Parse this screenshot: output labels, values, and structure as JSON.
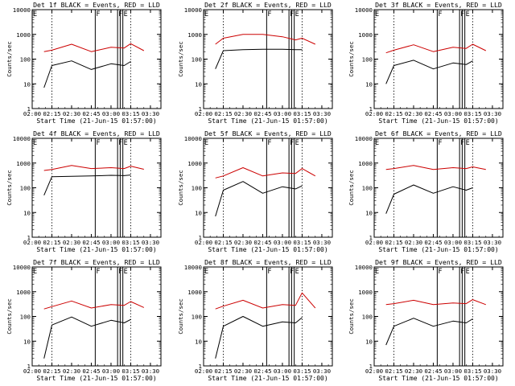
{
  "figure": {
    "x_axis_label": "Start Time (21-Jun-15 01:57:00)",
    "y_axis_label": "Counts/sec",
    "x_tick_labels": [
      "02:00",
      "02:15",
      "02:30",
      "02:45",
      "03:00",
      "03:15",
      "03:30"
    ],
    "y_tick_labels": [
      "1",
      "10",
      "100",
      "1000",
      "10000"
    ],
    "colors": {
      "events": "#000000",
      "lld": "#cc0000",
      "frame": "#000000"
    }
  },
  "chart_data": [
    {
      "type": "line",
      "title": "Det 1f BLACK = Events, RED = LLD",
      "xlim": [
        "02:00",
        "03:38"
      ],
      "ylim": [
        1,
        10000
      ],
      "y_scale": "log",
      "x": [
        "02:09",
        "02:15",
        "02:30",
        "02:45",
        "03:00",
        "03:10",
        "03:15",
        "03:25"
      ],
      "series": [
        {
          "name": "Events",
          "values": [
            7,
            55,
            85,
            38,
            65,
            55,
            80,
            null
          ]
        },
        {
          "name": "LLD",
          "values": [
            200,
            230,
            400,
            200,
            300,
            280,
            420,
            220
          ]
        }
      ],
      "annotation_letters": [
        "E",
        "F",
        "F",
        "E"
      ],
      "dotted_vlines": [
        "02:15",
        "03:15"
      ],
      "solid_vlines": [
        "02:48",
        "03:05",
        "03:07",
        "03:09"
      ]
    },
    {
      "type": "line",
      "title": "Det 2f BLACK = Events, RED = LLD",
      "xlim": [
        "02:00",
        "03:38"
      ],
      "ylim": [
        1,
        10000
      ],
      "y_scale": "log",
      "x": [
        "02:09",
        "02:15",
        "02:30",
        "02:45",
        "03:00",
        "03:10",
        "03:15",
        "03:25"
      ],
      "series": [
        {
          "name": "Events",
          "values": [
            40,
            220,
            240,
            250,
            250,
            240,
            240,
            null
          ]
        },
        {
          "name": "LLD",
          "values": [
            400,
            700,
            1000,
            1000,
            800,
            600,
            700,
            400
          ]
        }
      ],
      "annotation_letters": [
        "E",
        "F",
        "F",
        "E"
      ],
      "dotted_vlines": [
        "02:15",
        "03:15"
      ],
      "solid_vlines": [
        "02:48",
        "03:05",
        "03:07",
        "03:09"
      ]
    },
    {
      "type": "line",
      "title": "Det 3f BLACK = Events, RED = LLD",
      "xlim": [
        "02:00",
        "03:38"
      ],
      "ylim": [
        1,
        10000
      ],
      "y_scale": "log",
      "x": [
        "02:09",
        "02:15",
        "02:30",
        "02:45",
        "03:00",
        "03:10",
        "03:15",
        "03:25"
      ],
      "series": [
        {
          "name": "Events",
          "values": [
            10,
            55,
            90,
            40,
            70,
            60,
            85,
            null
          ]
        },
        {
          "name": "LLD",
          "values": [
            180,
            230,
            380,
            200,
            300,
            270,
            400,
            220
          ]
        }
      ],
      "annotation_letters": [
        "E",
        "F",
        "F",
        "E"
      ],
      "dotted_vlines": [
        "02:15",
        "03:15"
      ],
      "solid_vlines": [
        "02:48",
        "03:05",
        "03:07",
        "03:09"
      ]
    },
    {
      "type": "line",
      "title": "Det 4f BLACK = Events, RED = LLD",
      "xlim": [
        "02:00",
        "03:38"
      ],
      "ylim": [
        1,
        10000
      ],
      "y_scale": "log",
      "x": [
        "02:09",
        "02:15",
        "02:30",
        "02:45",
        "03:00",
        "03:10",
        "03:15",
        "03:25"
      ],
      "series": [
        {
          "name": "Events",
          "values": [
            50,
            280,
            290,
            300,
            320,
            310,
            330,
            null
          ]
        },
        {
          "name": "LLD",
          "values": [
            500,
            550,
            800,
            600,
            650,
            600,
            750,
            560
          ]
        }
      ],
      "annotation_letters": [
        "E",
        "F",
        "F",
        "E"
      ],
      "dotted_vlines": [
        "02:15",
        "03:15"
      ],
      "solid_vlines": [
        "02:48",
        "03:05",
        "03:07",
        "03:09"
      ]
    },
    {
      "type": "line",
      "title": "Det 5f BLACK = Events, RED = LLD",
      "xlim": [
        "02:00",
        "03:38"
      ],
      "ylim": [
        1,
        10000
      ],
      "y_scale": "log",
      "x": [
        "02:09",
        "02:15",
        "02:30",
        "02:45",
        "03:00",
        "03:10",
        "03:15",
        "03:25"
      ],
      "series": [
        {
          "name": "Events",
          "values": [
            7,
            80,
            180,
            60,
            110,
            90,
            120,
            null
          ]
        },
        {
          "name": "LLD",
          "values": [
            250,
            300,
            650,
            300,
            400,
            380,
            600,
            300
          ]
        }
      ],
      "annotation_letters": [
        "E",
        "F",
        "F",
        "E"
      ],
      "dotted_vlines": [
        "02:15",
        "03:15"
      ],
      "solid_vlines": [
        "02:48",
        "03:05",
        "03:07",
        "03:09"
      ]
    },
    {
      "type": "line",
      "title": "Det 6f BLACK = Events, RED = LLD",
      "xlim": [
        "02:00",
        "03:38"
      ],
      "ylim": [
        1,
        10000
      ],
      "y_scale": "log",
      "x": [
        "02:09",
        "02:15",
        "02:30",
        "02:45",
        "03:00",
        "03:10",
        "03:15",
        "03:25"
      ],
      "series": [
        {
          "name": "Events",
          "values": [
            9,
            55,
            130,
            60,
            110,
            80,
            100,
            null
          ]
        },
        {
          "name": "LLD",
          "values": [
            550,
            600,
            800,
            550,
            650,
            600,
            700,
            550
          ]
        }
      ],
      "annotation_letters": [
        "E",
        "F",
        "F",
        "E"
      ],
      "dotted_vlines": [
        "02:15",
        "03:15"
      ],
      "solid_vlines": [
        "02:48",
        "03:05",
        "03:07",
        "03:09"
      ]
    },
    {
      "type": "line",
      "title": "Det 7f BLACK = Events, RED = LLD",
      "xlim": [
        "02:00",
        "03:38"
      ],
      "ylim": [
        1,
        10000
      ],
      "y_scale": "log",
      "x": [
        "02:09",
        "02:15",
        "02:30",
        "02:45",
        "03:00",
        "03:10",
        "03:15",
        "03:25"
      ],
      "series": [
        {
          "name": "Events",
          "values": [
            2,
            45,
            95,
            40,
            70,
            55,
            75,
            null
          ]
        },
        {
          "name": "LLD",
          "values": [
            200,
            250,
            420,
            220,
            300,
            280,
            400,
            230
          ]
        }
      ],
      "annotation_letters": [
        "E",
        "F",
        "F",
        "E"
      ],
      "dotted_vlines": [
        "02:15",
        "03:15"
      ],
      "solid_vlines": [
        "02:48",
        "03:05",
        "03:07",
        "03:09"
      ]
    },
    {
      "type": "line",
      "title": "Det 8f BLACK = Events, RED = LLD",
      "xlim": [
        "02:00",
        "03:38"
      ],
      "ylim": [
        1,
        10000
      ],
      "y_scale": "log",
      "x": [
        "02:09",
        "02:15",
        "02:30",
        "02:45",
        "03:00",
        "03:10",
        "03:15",
        "03:25"
      ],
      "series": [
        {
          "name": "Events",
          "values": [
            2,
            40,
            100,
            40,
            60,
            55,
            90,
            null
          ]
        },
        {
          "name": "LLD",
          "values": [
            200,
            260,
            450,
            220,
            300,
            280,
            900,
            220
          ]
        }
      ],
      "annotation_letters": [
        "E",
        "F",
        "F",
        "E"
      ],
      "dotted_vlines": [
        "02:15",
        "03:15"
      ],
      "solid_vlines": [
        "02:48",
        "03:05",
        "03:07",
        "03:09"
      ]
    },
    {
      "type": "line",
      "title": "Det 9f BLACK = Events, RED = LLD",
      "xlim": [
        "02:00",
        "03:38"
      ],
      "ylim": [
        1,
        10000
      ],
      "y_scale": "log",
      "x": [
        "02:09",
        "02:15",
        "02:30",
        "02:45",
        "03:00",
        "03:10",
        "03:15",
        "03:25"
      ],
      "series": [
        {
          "name": "Events",
          "values": [
            7,
            40,
            85,
            40,
            65,
            55,
            80,
            null
          ]
        },
        {
          "name": "LLD",
          "values": [
            300,
            330,
            450,
            300,
            350,
            330,
            480,
            300
          ]
        }
      ],
      "annotation_letters": [
        "E",
        "F",
        "F",
        "E"
      ],
      "dotted_vlines": [
        "02:15",
        "03:15"
      ],
      "solid_vlines": [
        "02:48",
        "03:05",
        "03:07",
        "03:09"
      ]
    }
  ]
}
